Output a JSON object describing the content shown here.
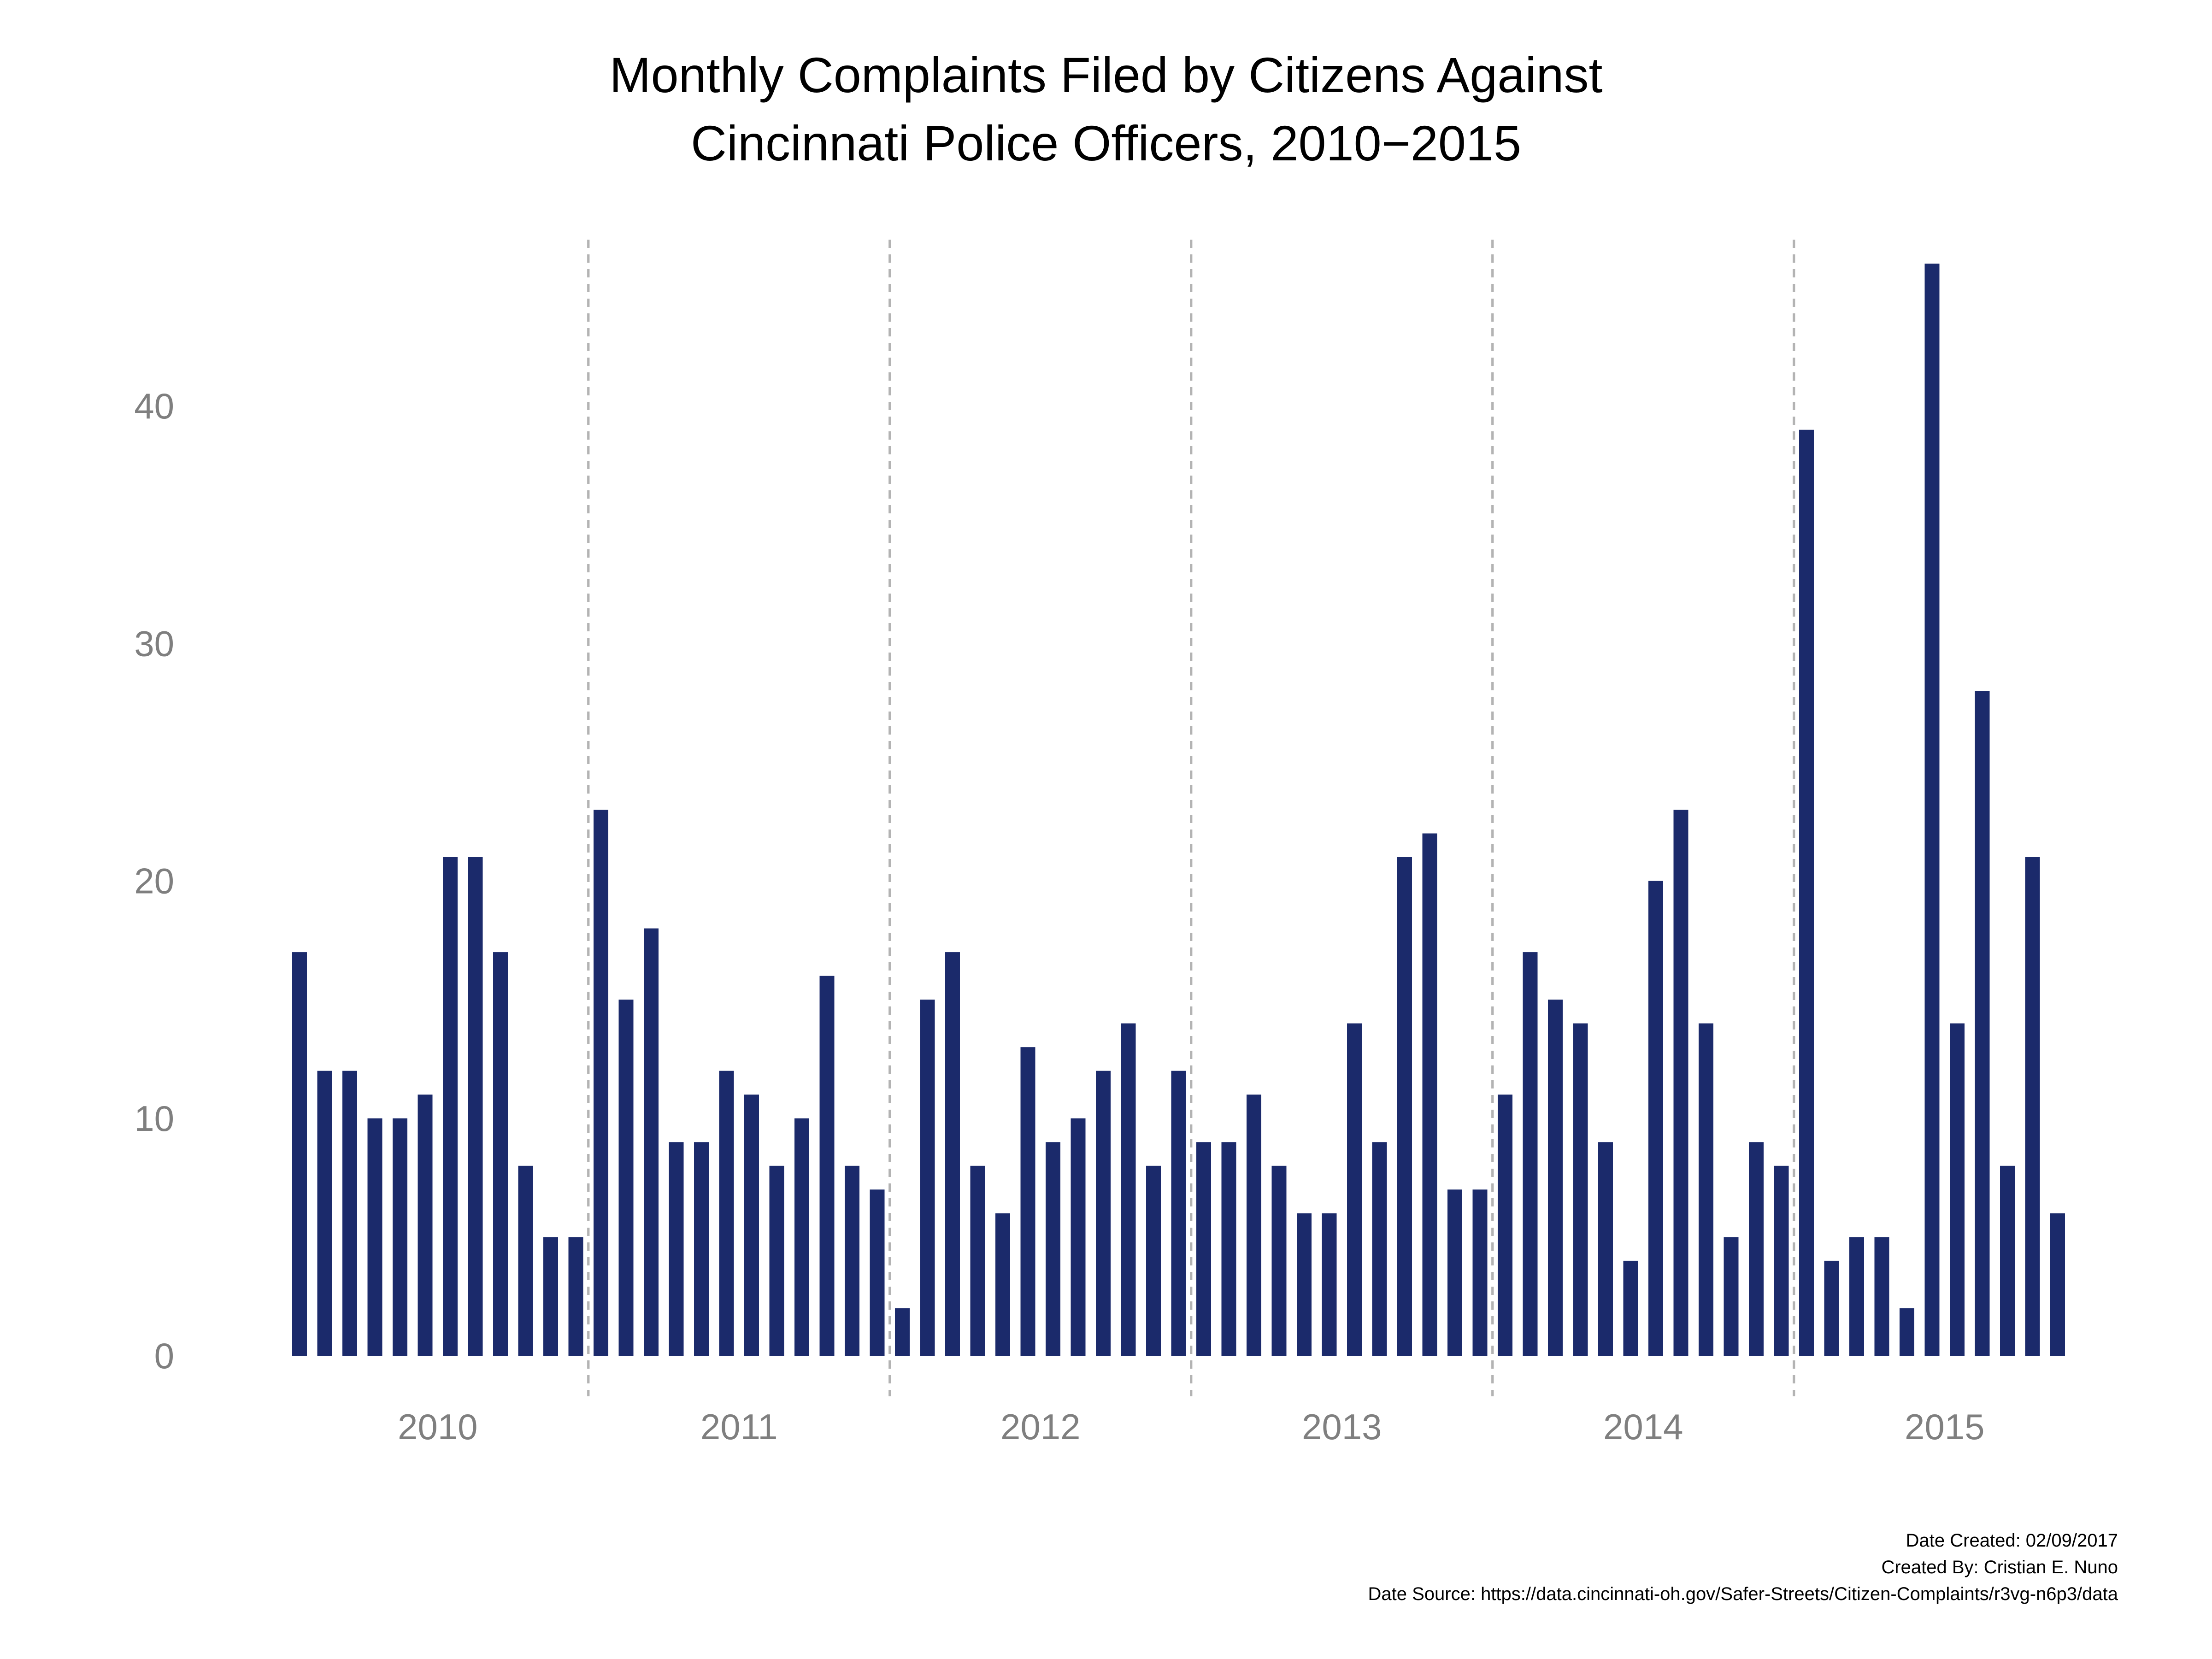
{
  "colors": {
    "bar": "#1b2a6b",
    "year_divider": "#b3b3b3",
    "tick_text": "#7f7f7f",
    "text": "#000000",
    "background": "#ffffff"
  },
  "chart_data": {
    "type": "bar",
    "title_lines": [
      "Monthly Complaints Filed by Citizens Against",
      "Cincinnati Police Officers, 2010−2015"
    ],
    "xlabel": "",
    "ylabel": "",
    "ylim": [
      0,
      46
    ],
    "y_ticks": [
      0,
      10,
      20,
      30,
      40
    ],
    "grid": false,
    "year_dividers": true,
    "year_labels": [
      "2010",
      "2011",
      "2012",
      "2013",
      "2014",
      "2015"
    ],
    "series": [
      {
        "values": [
          17,
          12,
          12,
          10,
          10,
          11,
          21,
          21,
          17,
          8,
          5,
          5,
          23,
          15,
          18,
          9,
          9,
          12,
          11,
          8,
          10,
          16,
          8,
          7,
          2,
          15,
          17,
          8,
          6,
          13,
          9,
          10,
          12,
          14,
          8,
          12,
          9,
          9,
          11,
          8,
          6,
          6,
          14,
          9,
          21,
          22,
          7,
          7,
          11,
          17,
          15,
          14,
          9,
          4,
          20,
          23,
          14,
          5,
          9,
          8,
          39,
          4,
          5,
          5,
          2,
          46,
          14,
          28,
          8,
          21,
          6
        ]
      }
    ]
  },
  "caption": {
    "date_created": "Date Created: 02/09/2017",
    "created_by": "Created By: Cristian E. Nuno",
    "source": "Date Source: https://data.cincinnati-oh.gov/Safer-Streets/Citizen-Complaints/r3vg-n6p3/data"
  }
}
